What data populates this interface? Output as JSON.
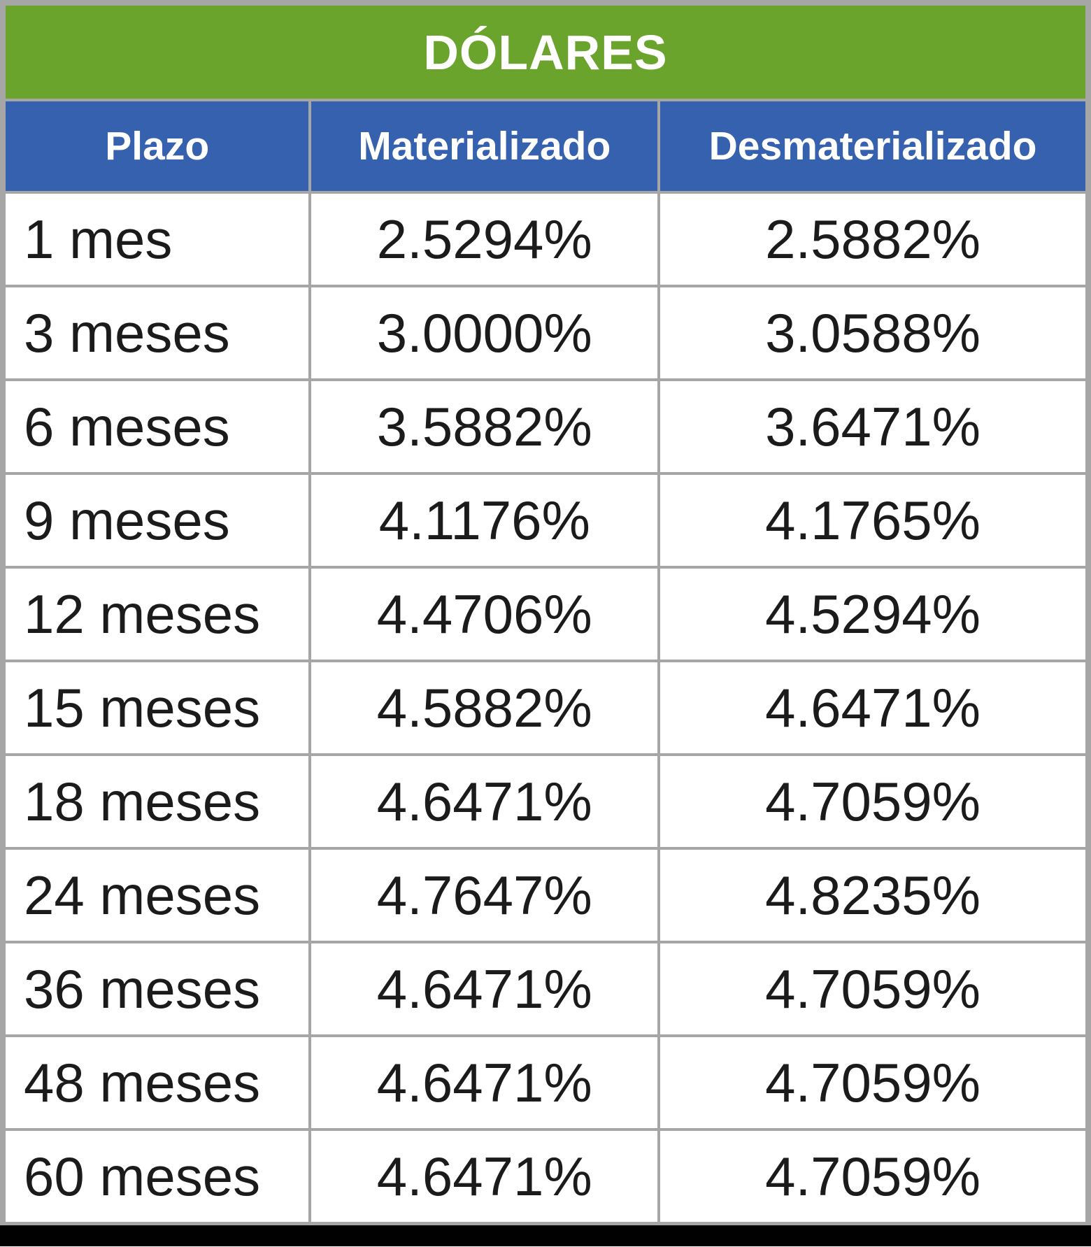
{
  "chart_data": {
    "type": "table",
    "title": "DÓLARES",
    "columns": [
      "Plazo",
      "Materializado",
      "Desmaterializado"
    ],
    "rows": [
      [
        "1 mes",
        "2.5294%",
        "2.5882%"
      ],
      [
        "3 meses",
        "3.0000%",
        "3.0588%"
      ],
      [
        "6 meses",
        "3.5882%",
        "3.6471%"
      ],
      [
        "9 meses",
        "4.1176%",
        "4.1765%"
      ],
      [
        "12 meses",
        "4.4706%",
        "4.5294%"
      ],
      [
        "15 meses",
        "4.5882%",
        "4.6471%"
      ],
      [
        "18 meses",
        "4.6471%",
        "4.7059%"
      ],
      [
        "24 meses",
        "4.7647%",
        "4.8235%"
      ],
      [
        "36 meses",
        "4.6471%",
        "4.7059%"
      ],
      [
        "48 meses",
        "4.6471%",
        "4.7059%"
      ],
      [
        "60 meses",
        "4.6471%",
        "4.7059%"
      ]
    ],
    "colors": {
      "title_background": "#6AA42C",
      "header_background": "#3561AE",
      "grid_border": "#A6A6A6",
      "bottom_bar": "#010101",
      "header_text": "#FFFFFF",
      "body_text": "#1B1B1B"
    },
    "layout": {
      "column_alignment": [
        "left",
        "center",
        "center"
      ],
      "grid": true
    }
  }
}
